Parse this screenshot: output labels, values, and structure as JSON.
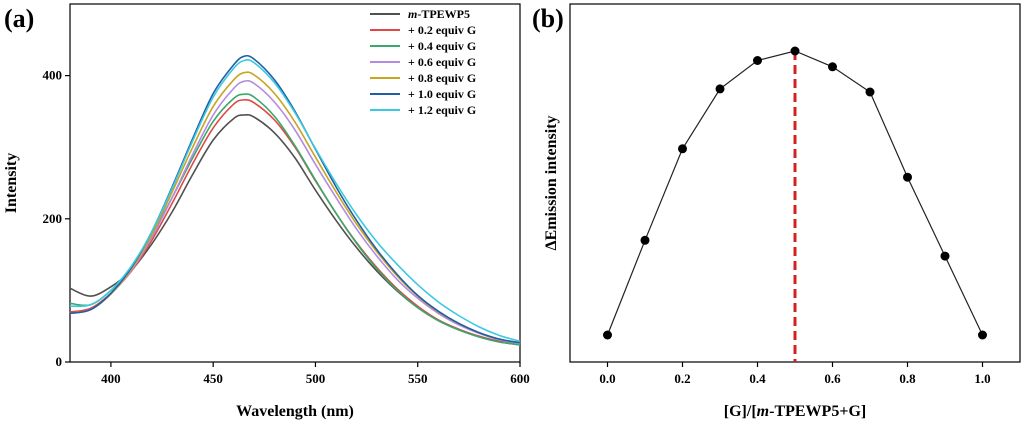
{
  "chart_data": [
    {
      "type": "line",
      "panel_label": "(a)",
      "xlabel": "Wavelength (nm)",
      "ylabel": "Intensity",
      "xlim": [
        380,
        600
      ],
      "ylim": [
        0,
        500
      ],
      "xticks": [
        400,
        450,
        500,
        550,
        600
      ],
      "yticks": [
        0,
        200,
        400
      ],
      "legend_position": "top-right",
      "series": [
        {
          "name": "m-TPEWP5",
          "name_italic": "m",
          "name_rest": "-TPEWP5",
          "color": "#505050",
          "x": [
            380,
            390,
            400,
            410,
            420,
            430,
            440,
            450,
            460,
            465,
            470,
            480,
            490,
            500,
            510,
            520,
            530,
            540,
            550,
            560,
            570,
            580,
            590,
            600
          ],
          "y": [
            103,
            92,
            105,
            128,
            165,
            210,
            262,
            310,
            340,
            345,
            342,
            320,
            285,
            240,
            198,
            160,
            127,
            99,
            76,
            58,
            45,
            35,
            28,
            24
          ]
        },
        {
          "name": "+ 0.2 equiv G",
          "color": "#e04848",
          "x": [
            380,
            390,
            400,
            410,
            420,
            430,
            440,
            450,
            460,
            465,
            470,
            480,
            490,
            500,
            510,
            520,
            530,
            540,
            550,
            560,
            570,
            580,
            590,
            600
          ],
          "y": [
            70,
            75,
            96,
            127,
            170,
            222,
            277,
            327,
            360,
            366,
            362,
            338,
            300,
            253,
            208,
            167,
            132,
            102,
            78,
            59,
            46,
            36,
            29,
            25
          ]
        },
        {
          "name": "+ 0.4 equiv G",
          "color": "#3aa86a",
          "x": [
            380,
            390,
            400,
            410,
            420,
            430,
            440,
            450,
            460,
            465,
            470,
            480,
            490,
            500,
            510,
            520,
            530,
            540,
            550,
            560,
            570,
            580,
            590,
            600
          ],
          "y": [
            82,
            80,
            100,
            132,
            177,
            230,
            285,
            336,
            368,
            374,
            370,
            343,
            302,
            254,
            208,
            166,
            130,
            100,
            76,
            58,
            45,
            35,
            28,
            24
          ]
        },
        {
          "name": "+ 0.6 equiv G",
          "color": "#b48be0",
          "x": [
            380,
            390,
            400,
            410,
            420,
            430,
            440,
            450,
            460,
            465,
            470,
            480,
            490,
            500,
            510,
            520,
            530,
            540,
            550,
            560,
            570,
            580,
            590,
            600
          ],
          "y": [
            68,
            73,
            95,
            128,
            174,
            230,
            290,
            345,
            382,
            392,
            389,
            363,
            324,
            276,
            230,
            186,
            148,
            115,
            89,
            68,
            52,
            40,
            31,
            26
          ]
        },
        {
          "name": "+ 0.8 equiv G",
          "color": "#c8a420",
          "x": [
            380,
            390,
            400,
            410,
            420,
            430,
            440,
            450,
            460,
            465,
            470,
            480,
            490,
            500,
            510,
            520,
            530,
            540,
            550,
            560,
            570,
            580,
            590,
            600
          ],
          "y": [
            68,
            73,
            95,
            130,
            178,
            238,
            300,
            357,
            394,
            404,
            401,
            375,
            335,
            286,
            238,
            193,
            154,
            120,
            92,
            70,
            54,
            41,
            32,
            27
          ]
        },
        {
          "name": "+ 1.0 equiv G",
          "color": "#1f5fa8",
          "x": [
            380,
            390,
            400,
            410,
            420,
            430,
            440,
            450,
            460,
            465,
            470,
            480,
            490,
            500,
            510,
            520,
            530,
            540,
            550,
            560,
            570,
            580,
            590,
            600
          ],
          "y": [
            68,
            73,
            96,
            132,
            182,
            245,
            312,
            375,
            415,
            427,
            423,
            394,
            350,
            297,
            245,
            198,
            157,
            122,
            93,
            71,
            54,
            41,
            32,
            27
          ]
        },
        {
          "name": "+ 1.2 equiv G",
          "color": "#3cc8e0",
          "x": [
            380,
            390,
            400,
            410,
            420,
            430,
            440,
            450,
            460,
            465,
            470,
            480,
            490,
            500,
            510,
            520,
            530,
            540,
            550,
            560,
            570,
            580,
            590,
            600
          ],
          "y": [
            78,
            80,
            100,
            134,
            182,
            243,
            309,
            370,
            410,
            421,
            418,
            390,
            348,
            298,
            250,
            206,
            168,
            136,
            108,
            84,
            65,
            49,
            37,
            29
          ]
        }
      ]
    },
    {
      "type": "line",
      "panel_label": "(b)",
      "xlabel_parts": [
        "[G]/[",
        "m",
        "-TPEWP5+G]"
      ],
      "ylabel": "ΔEmission intensity",
      "xlim": [
        -0.1,
        1.1
      ],
      "ylim": [
        0,
        1
      ],
      "xticks": [
        0.0,
        0.2,
        0.4,
        0.6,
        0.8,
        1.0
      ],
      "xtick_labels": [
        "0.0",
        "0.2",
        "0.4",
        "0.6",
        "0.8",
        "1.0"
      ],
      "x": [
        0.0,
        0.1,
        0.2,
        0.3,
        0.4,
        0.5,
        0.6,
        0.7,
        0.8,
        0.9,
        1.0
      ],
      "y": [
        0.1,
        0.4,
        0.69,
        0.88,
        0.97,
        1.0,
        0.95,
        0.87,
        0.6,
        0.35,
        0.1
      ],
      "marker_color": "#000000",
      "line_color": "#222222",
      "reference_line": {
        "x": 0.5,
        "color": "#d42020",
        "style": "dashed"
      }
    }
  ]
}
